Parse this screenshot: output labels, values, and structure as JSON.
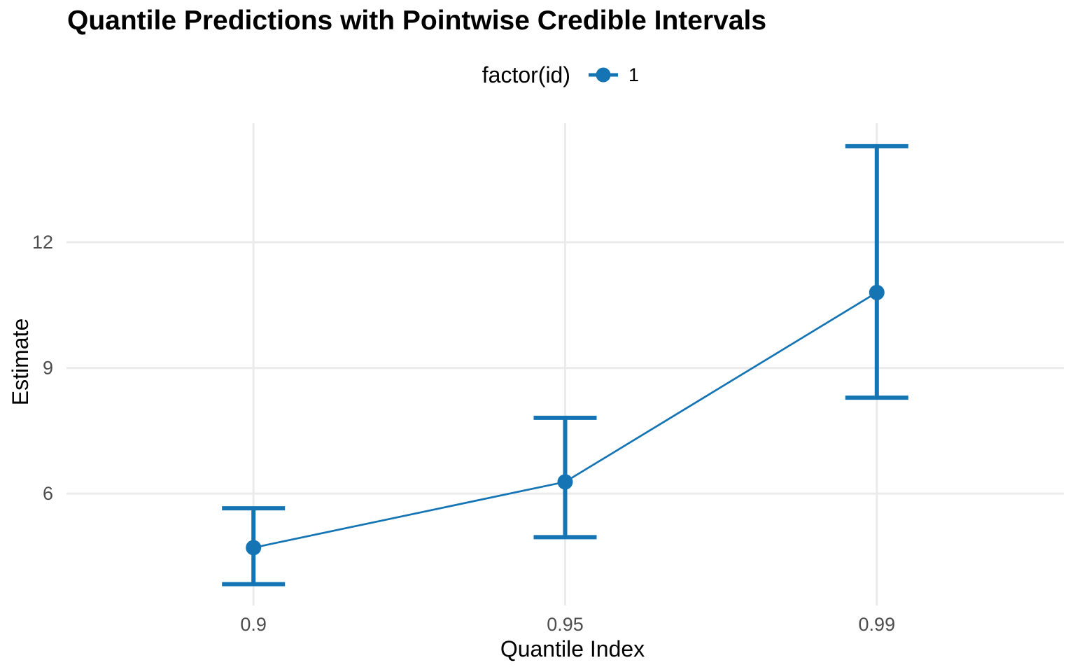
{
  "title": "Quantile Predictions with Pointwise Credible Intervals",
  "legend": {
    "title": "factor(id)",
    "position": "top-center",
    "items": [
      {
        "label": "1",
        "color": "#1474B4",
        "key": "point-with-line"
      }
    ]
  },
  "chart_data": {
    "type": "line",
    "subtype": "pointrange-with-errorbars",
    "x_labels": [
      "0.9",
      "0.95",
      "0.99"
    ],
    "x_values": [
      0.9,
      0.95,
      0.99
    ],
    "x_scale": "discrete",
    "series": [
      {
        "name": "1",
        "color": "#1474B4",
        "estimate": [
          4.71,
          6.28,
          10.8
        ],
        "lower": [
          3.84,
          4.96,
          8.29
        ],
        "upper": [
          5.65,
          7.81,
          14.29
        ]
      }
    ],
    "title": "Quantile Predictions with Pointwise Credible Intervals",
    "xlabel": "Quantile Index",
    "ylabel": "Estimate",
    "yticks": [
      6,
      9,
      12
    ],
    "ytick_labels": [
      "6",
      "9",
      "12"
    ],
    "ylim": [
      3.33,
      14.84
    ],
    "grid": true,
    "grid_minor": false,
    "legend_position": "top-center",
    "colors": {
      "series_blue": "#1474B4",
      "gridline": "#EBEBEB",
      "tick_text": "#4D4D4D",
      "title_text": "#000000",
      "background": "#FFFFFF"
    }
  }
}
